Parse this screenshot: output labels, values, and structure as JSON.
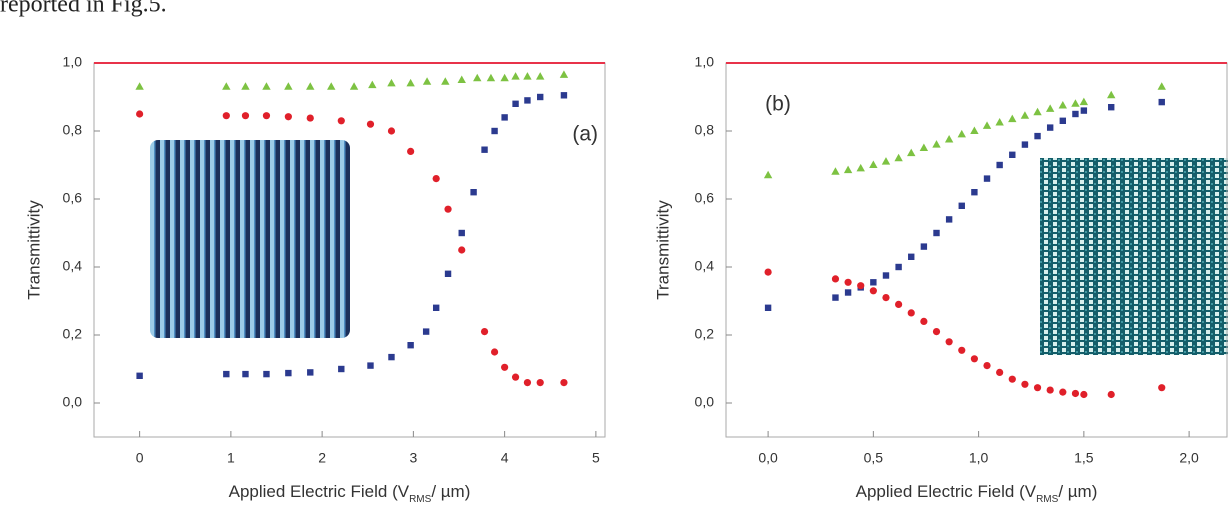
{
  "caption_fragment": "reported in Fig.5.",
  "chart_data": [
    {
      "type": "scatter",
      "panel_label": "(a)",
      "y_label": "Transmittivity",
      "x_label": "Applied Electric Field  (V",
      "x_label_sub": "RMS",
      "x_label_end": "/ µm)",
      "xlim": [
        -0.5,
        5.1
      ],
      "ylim": [
        -0.1,
        1.0
      ],
      "xticks": [
        0,
        1,
        2,
        3,
        4,
        5
      ],
      "yticks": [
        {
          "value": 0,
          "label": "0,0"
        },
        {
          "value": 0.2,
          "label": "0,2"
        },
        {
          "value": 0.4,
          "label": "0,4"
        },
        {
          "value": 0.6,
          "label": "0,6"
        },
        {
          "value": 0.8,
          "label": "0,8"
        },
        {
          "value": 1.0,
          "label": "1,0"
        }
      ],
      "series": [
        {
          "marker": "line",
          "color": "#e8334a",
          "x": [
            -0.5,
            5.1
          ],
          "values": [
            1.0,
            1.0
          ]
        },
        {
          "marker": "triangle",
          "color": "#7dc242",
          "x": [
            0,
            0.95,
            1.16,
            1.39,
            1.63,
            1.87,
            2.1,
            2.35,
            2.55,
            2.76,
            2.97,
            3.15,
            3.35,
            3.53,
            3.7,
            3.85,
            4.0,
            4.12,
            4.25,
            4.39,
            4.65
          ],
          "values": [
            0.93,
            0.93,
            0.93,
            0.93,
            0.93,
            0.93,
            0.93,
            0.93,
            0.935,
            0.94,
            0.94,
            0.945,
            0.945,
            0.95,
            0.955,
            0.955,
            0.955,
            0.96,
            0.96,
            0.96,
            0.965
          ]
        },
        {
          "marker": "circle",
          "color": "#e0202a",
          "x": [
            0,
            0.95,
            1.16,
            1.39,
            1.63,
            1.87,
            2.21,
            2.53,
            2.76,
            2.97,
            3.25,
            3.38,
            3.53,
            3.78,
            3.89,
            4.0,
            4.12,
            4.25,
            4.39,
            4.65
          ],
          "values": [
            0.85,
            0.845,
            0.845,
            0.845,
            0.842,
            0.838,
            0.83,
            0.82,
            0.8,
            0.74,
            0.66,
            0.57,
            0.45,
            0.21,
            0.15,
            0.105,
            0.076,
            0.06,
            0.06,
            0.06
          ]
        },
        {
          "marker": "square",
          "color": "#2b3a8f",
          "x": [
            0,
            0.95,
            1.16,
            1.39,
            1.63,
            1.87,
            2.21,
            2.53,
            2.76,
            2.97,
            3.14,
            3.25,
            3.38,
            3.53,
            3.66,
            3.78,
            3.89,
            4.0,
            4.12,
            4.25,
            4.39,
            4.65
          ],
          "values": [
            0.08,
            0.085,
            0.085,
            0.085,
            0.088,
            0.09,
            0.1,
            0.11,
            0.135,
            0.17,
            0.21,
            0.28,
            0.38,
            0.5,
            0.62,
            0.745,
            0.8,
            0.84,
            0.88,
            0.89,
            0.9,
            0.905
          ]
        }
      ]
    },
    {
      "type": "scatter",
      "panel_label": "(b)",
      "y_label": "Transmittivity",
      "x_label": "Applied Electric Field  (V",
      "x_label_sub": "RMS",
      "x_label_end": "/ µm)",
      "xlim": [
        -0.2,
        2.18
      ],
      "ylim": [
        -0.1,
        1.0
      ],
      "xticks": [
        {
          "value": 0,
          "label": "0,0"
        },
        {
          "value": 0.5,
          "label": "0,5"
        },
        {
          "value": 1.0,
          "label": "1,0"
        },
        {
          "value": 1.5,
          "label": "1,5"
        },
        {
          "value": 2.0,
          "label": "2,0"
        }
      ],
      "yticks": [
        {
          "value": 0,
          "label": "0,0"
        },
        {
          "value": 0.2,
          "label": "0,2"
        },
        {
          "value": 0.4,
          "label": "0,4"
        },
        {
          "value": 0.6,
          "label": "0,6"
        },
        {
          "value": 0.8,
          "label": "0,8"
        },
        {
          "value": 1.0,
          "label": "1,0"
        }
      ],
      "series": [
        {
          "marker": "line",
          "color": "#e8334a",
          "x": [
            -0.2,
            2.18
          ],
          "values": [
            1.0,
            1.0
          ]
        },
        {
          "marker": "triangle",
          "color": "#7dc242",
          "x": [
            0,
            0.32,
            0.38,
            0.44,
            0.5,
            0.56,
            0.62,
            0.68,
            0.74,
            0.8,
            0.86,
            0.92,
            0.98,
            1.04,
            1.1,
            1.16,
            1.22,
            1.28,
            1.34,
            1.4,
            1.46,
            1.5,
            1.63,
            1.87
          ],
          "values": [
            0.67,
            0.68,
            0.685,
            0.69,
            0.7,
            0.71,
            0.72,
            0.735,
            0.75,
            0.76,
            0.775,
            0.79,
            0.8,
            0.815,
            0.825,
            0.835,
            0.845,
            0.855,
            0.865,
            0.875,
            0.88,
            0.885,
            0.905,
            0.93
          ]
        },
        {
          "marker": "square",
          "color": "#2b3a8f",
          "x": [
            0,
            0.32,
            0.38,
            0.44,
            0.5,
            0.56,
            0.62,
            0.68,
            0.74,
            0.8,
            0.86,
            0.92,
            0.98,
            1.04,
            1.1,
            1.16,
            1.22,
            1.28,
            1.34,
            1.4,
            1.46,
            1.5,
            1.63,
            1.87
          ],
          "values": [
            0.28,
            0.31,
            0.325,
            0.34,
            0.355,
            0.375,
            0.4,
            0.43,
            0.46,
            0.5,
            0.54,
            0.58,
            0.62,
            0.66,
            0.7,
            0.73,
            0.76,
            0.785,
            0.81,
            0.83,
            0.85,
            0.86,
            0.87,
            0.885
          ]
        },
        {
          "marker": "circle",
          "color": "#e0202a",
          "x": [
            0,
            0.32,
            0.38,
            0.44,
            0.5,
            0.56,
            0.62,
            0.68,
            0.74,
            0.8,
            0.86,
            0.92,
            0.98,
            1.04,
            1.1,
            1.16,
            1.22,
            1.28,
            1.34,
            1.4,
            1.46,
            1.5,
            1.63,
            1.87
          ],
          "values": [
            0.385,
            0.365,
            0.355,
            0.345,
            0.33,
            0.31,
            0.29,
            0.265,
            0.24,
            0.21,
            0.18,
            0.155,
            0.13,
            0.11,
            0.09,
            0.07,
            0.055,
            0.045,
            0.038,
            0.032,
            0.028,
            0.025,
            0.025,
            0.045
          ]
        }
      ]
    }
  ]
}
